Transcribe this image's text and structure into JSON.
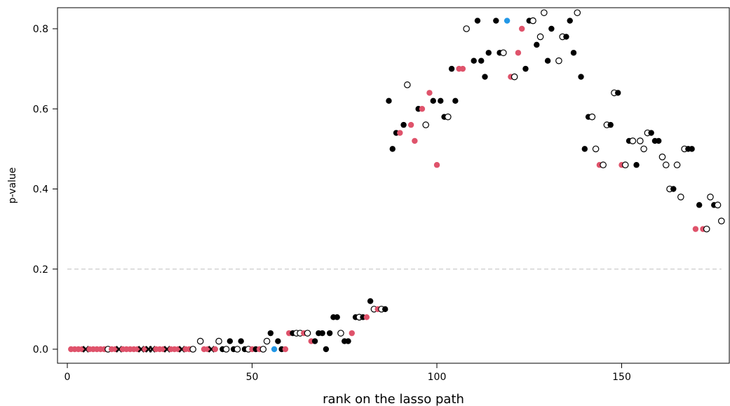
{
  "chart_data": {
    "type": "scatter",
    "xlabel": "rank on the lasso path",
    "ylabel": "p-value",
    "xlim": [
      -2,
      178
    ],
    "ylim": [
      -0.033,
      0.87
    ],
    "xticks": [
      0,
      50,
      100,
      150
    ],
    "yticks": [
      0.0,
      0.2,
      0.4,
      0.6,
      0.8
    ],
    "reference_line": {
      "y": 0.2,
      "style": "dashed",
      "color": "#cccccc"
    },
    "colors": {
      "black": "#000000",
      "red": "#df536b",
      "blue": "#2297e6",
      "open": "#000000"
    },
    "points": [
      [
        1,
        0,
        "r"
      ],
      [
        2,
        0,
        "r"
      ],
      [
        3,
        0,
        "r"
      ],
      [
        4,
        0,
        "r"
      ],
      [
        5,
        0,
        "x"
      ],
      [
        6,
        0,
        "r"
      ],
      [
        7,
        0,
        "r"
      ],
      [
        8,
        0,
        "r"
      ],
      [
        9,
        0,
        "r"
      ],
      [
        10,
        0,
        "r"
      ],
      [
        11,
        0,
        "o"
      ],
      [
        12,
        0,
        "r"
      ],
      [
        13,
        0,
        "r"
      ],
      [
        14,
        0,
        "x"
      ],
      [
        15,
        0,
        "r"
      ],
      [
        16,
        0,
        "r"
      ],
      [
        17,
        0,
        "r"
      ],
      [
        18,
        0,
        "r"
      ],
      [
        19,
        0,
        "r"
      ],
      [
        20,
        0,
        "x"
      ],
      [
        21,
        0,
        "r"
      ],
      [
        22,
        0,
        "x"
      ],
      [
        23,
        0,
        "x"
      ],
      [
        24,
        0,
        "r"
      ],
      [
        25,
        0,
        "r"
      ],
      [
        26,
        0,
        "r"
      ],
      [
        27,
        0,
        "x"
      ],
      [
        28,
        0,
        "r"
      ],
      [
        29,
        0,
        "r"
      ],
      [
        30,
        0,
        "r"
      ],
      [
        31,
        0,
        "x"
      ],
      [
        32,
        0,
        "r"
      ],
      [
        33,
        0,
        "r"
      ],
      [
        34,
        0,
        "o"
      ],
      [
        36,
        0.02,
        "o"
      ],
      [
        37,
        0,
        "r"
      ],
      [
        38,
        0,
        "r"
      ],
      [
        39,
        0,
        "x"
      ],
      [
        40,
        0,
        "r"
      ],
      [
        41,
        0.02,
        "o"
      ],
      [
        42,
        0,
        "b"
      ],
      [
        44,
        0.02,
        "b"
      ],
      [
        43,
        0,
        "o"
      ],
      [
        45,
        0,
        "b"
      ],
      [
        46,
        0,
        "o"
      ],
      [
        47,
        0.02,
        "b"
      ],
      [
        48,
        0,
        "b"
      ],
      [
        49,
        0,
        "o"
      ],
      [
        50,
        0,
        "r"
      ],
      [
        51,
        0,
        "b"
      ],
      [
        52,
        0,
        "r"
      ],
      [
        53,
        0,
        "o"
      ],
      [
        54,
        0.02,
        "o"
      ],
      [
        55,
        0.04,
        "b"
      ],
      [
        56,
        0,
        "bl"
      ],
      [
        57,
        0.02,
        "b"
      ],
      [
        58,
        0,
        "b"
      ],
      [
        59,
        0,
        "r"
      ],
      [
        60,
        0.04,
        "r"
      ],
      [
        61,
        0.04,
        "b"
      ],
      [
        62,
        0.04,
        "o"
      ],
      [
        63,
        0.04,
        "o"
      ],
      [
        64,
        0.04,
        "r"
      ],
      [
        65,
        0.04,
        "o"
      ],
      [
        66,
        0.02,
        "r"
      ],
      [
        67,
        0.02,
        "b"
      ],
      [
        68,
        0.04,
        "b"
      ],
      [
        69,
        0.04,
        "b"
      ],
      [
        70,
        0,
        "b"
      ],
      [
        71,
        0.04,
        "b"
      ],
      [
        72,
        0.08,
        "b"
      ],
      [
        73,
        0.08,
        "b"
      ],
      [
        74,
        0.04,
        "o"
      ],
      [
        75,
        0.02,
        "b"
      ],
      [
        76,
        0.02,
        "b"
      ],
      [
        77,
        0.04,
        "r"
      ],
      [
        78,
        0.08,
        "b"
      ],
      [
        79,
        0.08,
        "o"
      ],
      [
        80,
        0.08,
        "b"
      ],
      [
        81,
        0.08,
        "r"
      ],
      [
        82,
        0.12,
        "b"
      ],
      [
        83,
        0.1,
        "o"
      ],
      [
        84,
        0.1,
        "r"
      ],
      [
        85,
        0.1,
        "o"
      ],
      [
        86,
        0.1,
        "b"
      ],
      [
        87,
        0.62,
        "b"
      ],
      [
        88,
        0.5,
        "b"
      ],
      [
        89,
        0.54,
        "b"
      ],
      [
        90,
        0.54,
        "r"
      ],
      [
        91,
        0.56,
        "b"
      ],
      [
        92,
        0.66,
        "o"
      ],
      [
        93,
        0.56,
        "r"
      ],
      [
        94,
        0.52,
        "r"
      ],
      [
        95,
        0.6,
        "b"
      ],
      [
        96,
        0.6,
        "r"
      ],
      [
        97,
        0.56,
        "o"
      ],
      [
        98,
        0.64,
        "r"
      ],
      [
        99,
        0.62,
        "b"
      ],
      [
        100,
        0.46,
        "r"
      ],
      [
        101,
        0.62,
        "b"
      ],
      [
        102,
        0.58,
        "b"
      ],
      [
        103,
        0.58,
        "o"
      ],
      [
        104,
        0.7,
        "b"
      ],
      [
        105,
        0.62,
        "b"
      ],
      [
        106,
        0.7,
        "r"
      ],
      [
        107,
        0.7,
        "r"
      ],
      [
        108,
        0.8,
        "o"
      ],
      [
        110,
        0.72,
        "b"
      ],
      [
        111,
        0.82,
        "b"
      ],
      [
        112,
        0.72,
        "b"
      ],
      [
        113,
        0.68,
        "b"
      ],
      [
        114,
        0.74,
        "b"
      ],
      [
        116,
        0.82,
        "b"
      ],
      [
        117,
        0.74,
        "b"
      ],
      [
        118,
        0.74,
        "o"
      ],
      [
        119,
        0.82,
        "bl"
      ],
      [
        120,
        0.68,
        "r"
      ],
      [
        121,
        0.68,
        "o"
      ],
      [
        122,
        0.74,
        "r"
      ],
      [
        123,
        0.8,
        "r"
      ],
      [
        124,
        0.7,
        "b"
      ],
      [
        125,
        0.82,
        "b"
      ],
      [
        126,
        0.82,
        "o"
      ],
      [
        127,
        0.76,
        "b"
      ],
      [
        128,
        0.78,
        "o"
      ],
      [
        129,
        0.84,
        "o"
      ],
      [
        130,
        0.72,
        "b"
      ],
      [
        131,
        0.8,
        "b"
      ],
      [
        133,
        0.72,
        "o"
      ],
      [
        134,
        0.78,
        "o"
      ],
      [
        135,
        0.78,
        "b"
      ],
      [
        136,
        0.82,
        "b"
      ],
      [
        137,
        0.74,
        "b"
      ],
      [
        138,
        0.84,
        "o"
      ],
      [
        139,
        0.68,
        "b"
      ],
      [
        140,
        0.5,
        "b"
      ],
      [
        141,
        0.58,
        "b"
      ],
      [
        142,
        0.58,
        "o"
      ],
      [
        143,
        0.5,
        "o"
      ],
      [
        144,
        0.46,
        "r"
      ],
      [
        145,
        0.46,
        "o"
      ],
      [
        146,
        0.56,
        "o"
      ],
      [
        147,
        0.56,
        "b"
      ],
      [
        148,
        0.64,
        "o"
      ],
      [
        149,
        0.64,
        "b"
      ],
      [
        150,
        0.46,
        "r"
      ],
      [
        151,
        0.46,
        "o"
      ],
      [
        152,
        0.52,
        "b"
      ],
      [
        153,
        0.52,
        "o"
      ],
      [
        154,
        0.46,
        "b"
      ],
      [
        155,
        0.52,
        "o"
      ],
      [
        156,
        0.5,
        "o"
      ],
      [
        157,
        0.54,
        "o"
      ],
      [
        158,
        0.54,
        "b"
      ],
      [
        159,
        0.52,
        "b"
      ],
      [
        160,
        0.52,
        "b"
      ],
      [
        161,
        0.48,
        "o"
      ],
      [
        162,
        0.46,
        "o"
      ],
      [
        163,
        0.4,
        "o"
      ],
      [
        164,
        0.4,
        "b"
      ],
      [
        165,
        0.46,
        "o"
      ],
      [
        166,
        0.38,
        "o"
      ],
      [
        167,
        0.5,
        "o"
      ],
      [
        168,
        0.5,
        "b"
      ],
      [
        169,
        0.5,
        "b"
      ],
      [
        170,
        0.3,
        "r"
      ],
      [
        171,
        0.36,
        "b"
      ],
      [
        172,
        0.3,
        "r"
      ],
      [
        173,
        0.3,
        "o"
      ],
      [
        174,
        0.38,
        "o"
      ],
      [
        175,
        0.36,
        "b"
      ],
      [
        176,
        0.36,
        "o"
      ],
      [
        177,
        0.32,
        "o"
      ]
    ]
  }
}
